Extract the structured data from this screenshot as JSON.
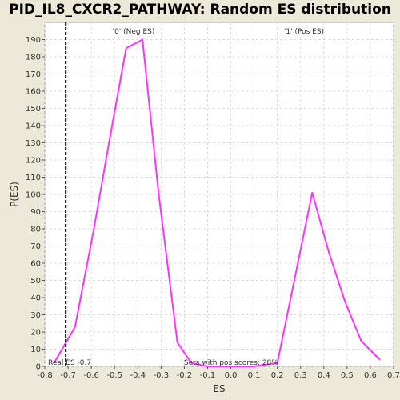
{
  "chart_data": {
    "type": "line",
    "title": "PID_IL8_CXCR2_PATHWAY: Random ES distribution",
    "xlabel": "ES",
    "ylabel": "P(ES)",
    "xlim": [
      -0.8,
      0.7
    ],
    "ylim": [
      0,
      200
    ],
    "x_ticks": [
      "-0.8",
      "-0.7",
      "-0.6",
      "-0.5",
      "-0.4",
      "-0.3",
      "-0.2",
      "-0.1",
      "0.0",
      "0.1",
      "0.2",
      "0.3",
      "0.4",
      "0.5",
      "0.6",
      "0.7"
    ],
    "y_ticks": [
      "0",
      "10",
      "20",
      "30",
      "40",
      "50",
      "60",
      "70",
      "80",
      "90",
      "100",
      "110",
      "120",
      "130",
      "140",
      "150",
      "160",
      "170",
      "180",
      "190"
    ],
    "grid": true,
    "series": [
      {
        "color": "#FF33FF",
        "points": [
          [
            -0.76,
            2
          ],
          [
            -0.67,
            23
          ],
          [
            -0.59,
            79
          ],
          [
            -0.52,
            133
          ],
          [
            -0.45,
            185
          ],
          [
            -0.38,
            190
          ],
          [
            -0.31,
            100
          ],
          [
            -0.23,
            14
          ],
          [
            -0.17,
            2
          ],
          [
            -0.1,
            0
          ],
          [
            0.0,
            0
          ],
          [
            0.1,
            0
          ],
          [
            0.2,
            2
          ],
          [
            0.27,
            48
          ],
          [
            0.35,
            101
          ],
          [
            0.42,
            67
          ],
          [
            0.49,
            38
          ],
          [
            0.56,
            15
          ],
          [
            0.64,
            4
          ]
        ]
      }
    ],
    "annotations": {
      "neg_label": "'0' (Neg ES)",
      "pos_label": "'1' (Pos ES)",
      "real_es_label": "Real ES -0.7",
      "real_es_value": -0.71,
      "pos_scores_label": "Sets with pos scores: 28%"
    },
    "colors": {
      "neg": "#3333CC",
      "pos": "#CC3333",
      "plot_bg": "#FFFFFF",
      "grid": "#DDDDDD"
    }
  }
}
